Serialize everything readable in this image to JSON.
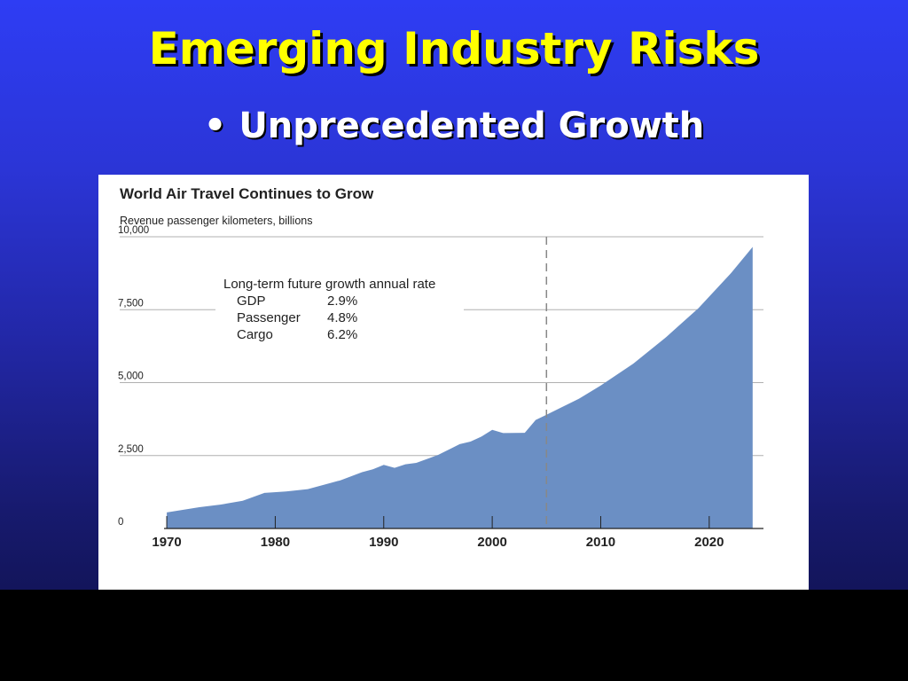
{
  "slide": {
    "title": "Emerging Industry Risks",
    "bullet": "Unprecedented Growth",
    "bullet_symbol": "•"
  },
  "colors": {
    "background_top": "#2e3df4",
    "background_bottom": "#0e0f45",
    "title": "#ffff00",
    "bullet": "#ffffff",
    "area_fill": "#6b8fc4",
    "footer": "#000000"
  },
  "chart_data": {
    "type": "area",
    "title": "World Air Travel Continues to Grow",
    "subtitle": "Revenue passenger kilometers, billions",
    "xlabel": "",
    "ylabel": "",
    "xlim": [
      1965.5,
      2025
    ],
    "ylim": [
      0,
      10000
    ],
    "y_ticks": [
      "0",
      "2,500",
      "5,000",
      "7,500",
      "10,000"
    ],
    "y_tick_values": [
      0,
      2500,
      5000,
      7500,
      10000
    ],
    "x_ticks": [
      "1970",
      "1980",
      "1990",
      "2000",
      "2010",
      "2020"
    ],
    "x_tick_values": [
      1970,
      1980,
      1990,
      2000,
      2010,
      2020
    ],
    "grid": true,
    "marker_line_year": 2005,
    "marker_line_style": "dashed",
    "series": [
      {
        "x": [
          1970,
          1973,
          1975,
          1977,
          1979,
          1981,
          1983,
          1985,
          1986,
          1988,
          1989,
          1990,
          1991,
          1992,
          1993,
          1995,
          1997,
          1998,
          1999,
          2000,
          2001,
          2003,
          2004,
          2005,
          2008,
          2010,
          2013,
          2016,
          2019,
          2022,
          2024
        ],
        "values": [
          550,
          730,
          820,
          950,
          1220,
          1270,
          1350,
          1550,
          1650,
          1930,
          2030,
          2180,
          2080,
          2200,
          2250,
          2520,
          2890,
          2980,
          3150,
          3380,
          3270,
          3280,
          3720,
          3900,
          4450,
          4900,
          5650,
          6550,
          7550,
          8750,
          9650
        ]
      }
    ],
    "annotation": {
      "heading": "Long-term future growth annual rate",
      "rows": [
        {
          "label": "GDP",
          "value": "2.9%"
        },
        {
          "label": "Passenger",
          "value": "4.8%"
        },
        {
          "label": "Cargo",
          "value": "6.2%"
        }
      ]
    }
  }
}
